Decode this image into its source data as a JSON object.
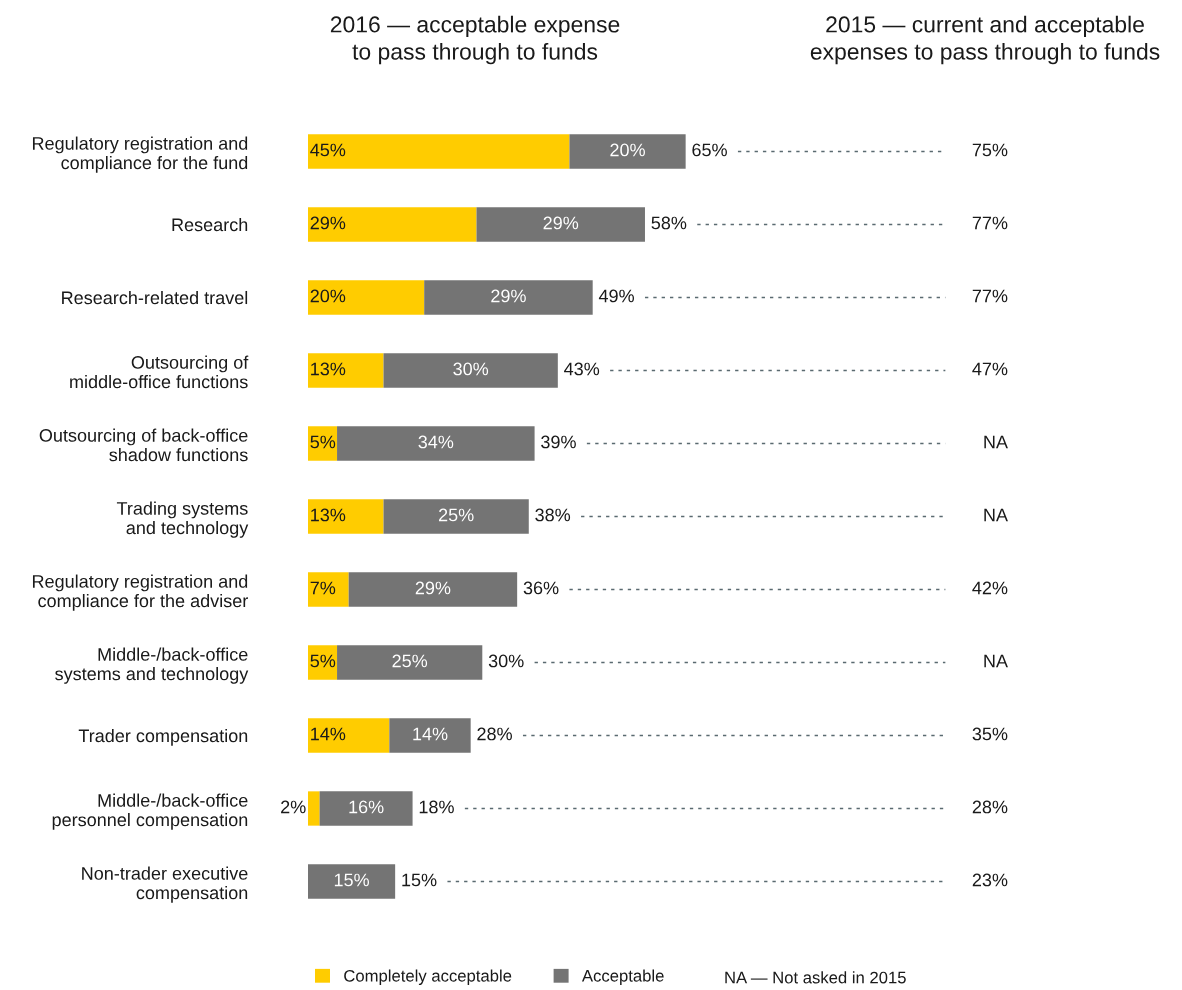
{
  "chart_data": [
    {
      "type": "bar",
      "orientation": "horizontal",
      "stacked": true,
      "title": "2016 — acceptable expense\nto pass through to funds",
      "categories": [
        "Regulatory registration and\ncompliance for the fund",
        "Research",
        "Research-related travel",
        "Outsourcing of\nmiddle-office functions",
        "Outsourcing of back-office\nshadow functions",
        "Trading systems\nand technology",
        "Regulatory registration and\ncompliance for the adviser",
        "Middle-/back-office\nsystems and technology",
        "Trader compensation",
        "Middle-/back-office\npersonnel compensation",
        "Non-trader executive\ncompensation"
      ],
      "series": [
        {
          "name": "Completely acceptable",
          "color": "#ffcc00",
          "values": [
            45,
            29,
            20,
            13,
            5,
            13,
            7,
            5,
            14,
            2,
            0
          ],
          "value_labels": [
            "45%",
            "29%",
            "20%",
            "13%",
            "5%",
            "13%",
            "7%",
            "5%",
            "14%",
            "2%",
            null
          ]
        },
        {
          "name": "Acceptable",
          "color": "#747474",
          "values": [
            20,
            29,
            29,
            30,
            34,
            25,
            29,
            25,
            14,
            16,
            15
          ],
          "value_labels": [
            "20%",
            "29%",
            "29%",
            "30%",
            "34%",
            "25%",
            "29%",
            "25%",
            "14%",
            "16%",
            "15%"
          ]
        }
      ],
      "totals": [
        "65%",
        "58%",
        "49%",
        "43%",
        "39%",
        "38%",
        "36%",
        "30%",
        "28%",
        "18%",
        "15%"
      ],
      "legend": "bottom",
      "grid": false,
      "annotations": [
        "NA — Not asked in 2015"
      ]
    },
    {
      "type": "other",
      "title": "2015 — current and acceptable\nexpenses to pass through to funds",
      "categories": [
        null,
        null,
        null,
        null,
        null,
        null,
        null,
        null,
        null,
        null,
        null
      ],
      "value_labels": [
        "75%",
        "77%",
        "77%",
        "47%",
        "NA",
        "NA",
        "42%",
        "NA",
        "35%",
        "28%",
        "23%"
      ]
    }
  ]
}
